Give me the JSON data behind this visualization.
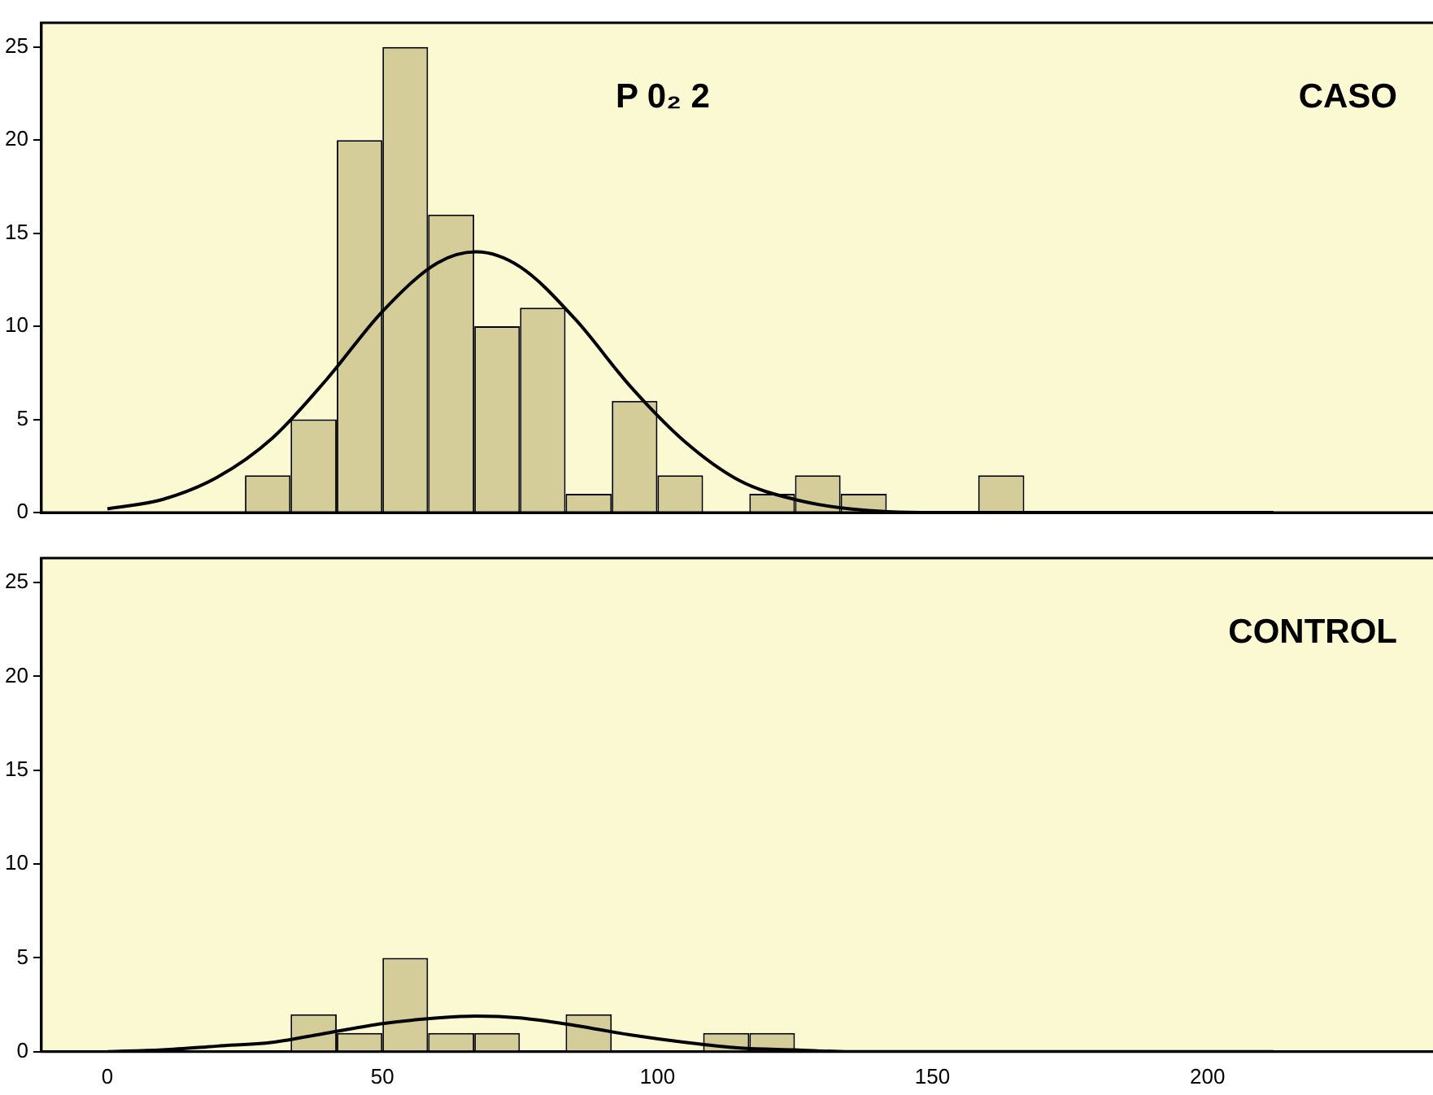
{
  "chart_data": [
    {
      "type": "histogram",
      "annotations": [
        "P 0₂ 2",
        "CASO"
      ],
      "xlim": [
        -12,
        241
      ],
      "xticks": [
        0,
        50,
        100,
        150,
        200
      ],
      "ylim": [
        0,
        26.3
      ],
      "yticks": [
        0,
        5,
        10,
        15,
        20,
        25
      ],
      "tick_labels": "y",
      "grid": false,
      "legend": false,
      "marker": "none",
      "series": [
        {
          "type": "histogram",
          "color": "#d4cd99",
          "bins": [
            25,
            33.3,
            41.7,
            50,
            58.3,
            66.7,
            75,
            83.3,
            91.7,
            100,
            108.3,
            116.7,
            125,
            133.3,
            141.7,
            158.3,
            166.7
          ],
          "values": [
            2,
            5,
            20,
            25,
            16,
            10,
            11,
            1,
            6,
            2,
            0,
            1,
            2,
            1,
            0,
            2
          ]
        },
        {
          "type": "line",
          "color": "#000000",
          "x": [
            0,
            10,
            20,
            30,
            40,
            50,
            60,
            67,
            75,
            85,
            95,
            105,
            115,
            125,
            135,
            150,
            170,
            212
          ],
          "values": [
            0.2,
            0.7,
            1.9,
            4.0,
            7.2,
            10.8,
            13.4,
            14,
            13.2,
            10.4,
            6.8,
            3.8,
            1.7,
            0.7,
            0.2,
            0,
            0,
            0
          ]
        }
      ]
    },
    {
      "type": "histogram",
      "annotations": [
        "CONTROL"
      ],
      "xlim": [
        -12,
        241
      ],
      "xticks": [
        0,
        50,
        100,
        150,
        200
      ],
      "ylim": [
        0,
        26.3
      ],
      "yticks": [
        0,
        5,
        10,
        15,
        20,
        25
      ],
      "grid": false,
      "legend": false,
      "marker": "none",
      "series": [
        {
          "type": "histogram",
          "color": "#d4cd99",
          "bins": [
            33.3,
            41.7,
            50,
            58.3,
            66.7,
            75,
            83.3,
            91.7,
            108.3,
            116.7,
            125
          ],
          "values": [
            2,
            1,
            5,
            1,
            1,
            0,
            2,
            0,
            1,
            1
          ]
        },
        {
          "type": "line",
          "color": "#000000",
          "x": [
            0,
            10,
            20,
            30,
            40,
            50,
            60,
            67,
            75,
            85,
            95,
            105,
            115,
            125,
            135,
            150,
            212
          ],
          "values": [
            0,
            0.1,
            0.3,
            0.5,
            1.0,
            1.5,
            1.8,
            1.9,
            1.8,
            1.4,
            0.9,
            0.5,
            0.2,
            0.1,
            0,
            0,
            0
          ]
        }
      ]
    }
  ]
}
